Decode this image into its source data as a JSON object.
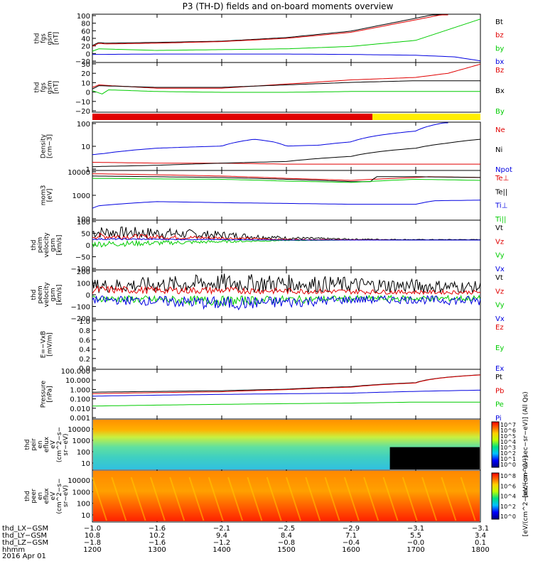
{
  "title": "P3 (TH-D) fields and on-board moments overview",
  "date": "2016 Apr 01",
  "colors": {
    "black": "#000000",
    "red": "#e00000",
    "green": "#00cc00",
    "blue": "#0000e0",
    "yellow": "#ffee00",
    "orange": "#ff8c00"
  },
  "chart_data": [
    {
      "type": "line",
      "ylabel": [
        "thd",
        "fgs",
        "gsm",
        "[nT]"
      ],
      "ylim": [
        -20,
        100
      ],
      "yticks": [
        "100",
        "80",
        "60",
        "40",
        "20",
        "0",
        "−20"
      ],
      "series": [
        {
          "name": "Bt",
          "color": "#000000",
          "x": [
            1200,
            1210,
            1220,
            1300,
            1400,
            1500,
            1600,
            1700,
            1745
          ],
          "values": [
            22,
            30,
            28,
            30,
            33,
            42,
            58,
            90,
            105
          ]
        },
        {
          "name": "bz",
          "color": "#e00000",
          "x": [
            1200,
            1210,
            1220,
            1300,
            1400,
            1500,
            1600,
            1700,
            1750
          ],
          "values": [
            20,
            28,
            26,
            28,
            32,
            40,
            55,
            86,
            102
          ]
        },
        {
          "name": "by",
          "color": "#00cc00",
          "x": [
            1200,
            1210,
            1300,
            1400,
            1500,
            1600,
            1700,
            1800
          ],
          "values": [
            8,
            14,
            10,
            12,
            14,
            20,
            35,
            88
          ]
        },
        {
          "name": "bx",
          "color": "#0000e0",
          "x": [
            1200,
            1300,
            1400,
            1500,
            1600,
            1700,
            1760,
            1800
          ],
          "values": [
            0,
            1,
            1,
            1,
            0,
            -2,
            -6,
            -16
          ]
        }
      ]
    },
    {
      "type": "line",
      "ylabel": [
        "thd",
        "fgs",
        "gsm",
        "[nT]"
      ],
      "ylim": [
        -30,
        30
      ],
      "yticks": [
        "30",
        "20",
        "10",
        "0",
        "−10",
        "−20"
      ],
      "series": [
        {
          "name": "Bz",
          "color": "#e00000",
          "x": [
            1200,
            1210,
            1230,
            1300,
            1400,
            1500,
            1600,
            1700,
            1750,
            1800
          ],
          "values": [
            0,
            3,
            2,
            -1,
            -1,
            4,
            9,
            12,
            17,
            28
          ]
        },
        {
          "name": "Bx",
          "color": "#000000",
          "x": [
            1200,
            1210,
            1300,
            1400,
            1500,
            1600,
            1700,
            1800
          ],
          "values": [
            -2,
            2,
            0,
            0,
            3,
            6,
            8,
            8
          ]
        },
        {
          "name": "By",
          "color": "#00cc00",
          "x": [
            1200,
            1215,
            1225,
            1300,
            1400,
            1500,
            1600,
            1700,
            1800
          ],
          "values": [
            -4,
            -8,
            -3,
            -5,
            -6,
            -6,
            -5,
            -5,
            -5
          ]
        }
      ]
    },
    {
      "type": "mode-bar",
      "segments": [
        {
          "x": [
            1200,
            1633
          ],
          "color": "#e00000"
        },
        {
          "x": [
            1633,
            1800
          ],
          "color": "#ffee00"
        }
      ]
    },
    {
      "type": "line",
      "scale": "log",
      "ylabel": [
        "Density",
        "[cm−3]"
      ],
      "ylim": [
        0.3,
        200
      ],
      "yticks": [
        "100",
        "10",
        "1"
      ],
      "series": [
        {
          "name": "Ne",
          "color": "#e00000",
          "x": [
            1200,
            1300,
            1400,
            1500,
            1600,
            1700,
            1800
          ],
          "values": [
            0.9,
            0.8,
            0.8,
            0.7,
            0.7,
            0.7,
            0.7
          ]
        },
        {
          "name": "Ni",
          "color": "#000000",
          "x": [
            1200,
            1300,
            1400,
            1500,
            1600,
            1700,
            1750,
            1800
          ],
          "values": [
            0.5,
            0.6,
            0.8,
            1.0,
            2.0,
            6.0,
            12,
            20
          ]
        },
        {
          "name": "Npot",
          "color": "#0000e0",
          "x": [
            1200,
            1220,
            1300,
            1400,
            1450,
            1480,
            1500,
            1550,
            1600,
            1700,
            1750
          ],
          "values": [
            2.5,
            3,
            6,
            8,
            20,
            14,
            8,
            9,
            14,
            60,
            200
          ]
        }
      ]
    },
    {
      "type": "line",
      "scale": "log",
      "ylabel": [
        "mom3",
        "[eV]"
      ],
      "ylim": [
        25,
        12000
      ],
      "yticks": [
        "10000",
        "1000",
        "100"
      ],
      "series": [
        {
          "name": "Te⊥",
          "color": "#e00000",
          "x": [
            1200,
            1300,
            1400,
            1500,
            1600,
            1700,
            1720,
            1800
          ],
          "values": [
            8000,
            7000,
            6000,
            4500,
            3500,
            5000,
            5500,
            5000
          ]
        },
        {
          "name": "Te||",
          "color": "#000000",
          "x": [
            1200,
            1300,
            1400,
            1500,
            1600,
            1630,
            1640,
            1700,
            1800
          ],
          "values": [
            6000,
            5500,
            5000,
            4000,
            3000,
            3000,
            5500,
            5500,
            5000
          ]
        },
        {
          "name": "Ti⊥",
          "color": "#0000e0",
          "x": [
            1200,
            1210,
            1300,
            1400,
            1500,
            1600,
            1700,
            1730,
            1800
          ],
          "values": [
            110,
            150,
            250,
            220,
            200,
            180,
            180,
            280,
            300
          ]
        },
        {
          "name": "Ti||",
          "color": "#00cc00",
          "x": [
            1200,
            1300,
            1400,
            1500,
            1600,
            1700,
            1800
          ],
          "values": [
            4500,
            4200,
            4000,
            3200,
            2700,
            4000,
            3500
          ]
        }
      ]
    },
    {
      "type": "line",
      "ylabel": [
        "thd",
        "peim",
        "velocity",
        "gsm",
        "[km/s]"
      ],
      "ylim": [
        -150,
        100
      ],
      "yticks": [
        "100",
        "50",
        "0",
        "−50",
        "−100"
      ],
      "series": [
        {
          "name": "Vt",
          "color": "#000000",
          "x": [
            1200,
            1300,
            1400,
            1500,
            1600,
            1700,
            1800
          ],
          "values": [
            40,
            35,
            25,
            10,
            4,
            2,
            2
          ]
        },
        {
          "name": "Vz",
          "color": "#e00000",
          "x": [
            1200,
            1300,
            1400,
            1500,
            1600,
            1700,
            1800
          ],
          "values": [
            20,
            15,
            10,
            3,
            1,
            0,
            0
          ]
        },
        {
          "name": "Vy",
          "color": "#00cc00",
          "x": [
            1200,
            1300,
            1400,
            1500,
            1600,
            1700,
            1800
          ],
          "values": [
            -20,
            -15,
            -8,
            -2,
            0,
            0,
            0
          ]
        },
        {
          "name": "Vx",
          "color": "#0000e0",
          "x": [
            1200,
            1300,
            1400,
            1500,
            1600,
            1700,
            1800
          ],
          "values": [
            5,
            4,
            2,
            0,
            0,
            0,
            0
          ]
        }
      ]
    },
    {
      "type": "line",
      "ylabel": [
        "thd",
        "peem",
        "velocity",
        "gsm",
        "[km/s]"
      ],
      "ylim": [
        -200,
        200
      ],
      "yticks": [
        "200",
        "100",
        "0",
        "−100",
        "−200"
      ],
      "series": [
        {
          "name": "Vt",
          "color": "#000000",
          "x": [
            1200,
            1300,
            1400,
            1500,
            1600,
            1700,
            1800
          ],
          "values": [
            70,
            80,
            95,
            90,
            80,
            70,
            60
          ]
        },
        {
          "name": "Vz",
          "color": "#e00000",
          "x": [
            1200,
            1300,
            1400,
            1500,
            1600,
            1700,
            1800
          ],
          "values": [
            40,
            35,
            35,
            30,
            25,
            20,
            20
          ]
        },
        {
          "name": "Vy",
          "color": "#00cc00",
          "x": [
            1200,
            1300,
            1400,
            1500,
            1600,
            1700,
            1800
          ],
          "values": [
            -30,
            -40,
            -50,
            -40,
            -30,
            -30,
            -30
          ]
        },
        {
          "name": "Vx",
          "color": "#0000e0",
          "x": [
            1200,
            1300,
            1400,
            1500,
            1600,
            1700,
            1800
          ],
          "values": [
            -40,
            -50,
            -70,
            -60,
            -40,
            -40,
            -50
          ]
        }
      ]
    },
    {
      "type": "line",
      "ylabel": [
        "E=−VxB",
        "[mV/m]"
      ],
      "ylim": [
        0,
        1.0
      ],
      "yticks": [
        "1.0",
        "0.8",
        "0.6",
        "0.4",
        "0.2",
        "0.0"
      ],
      "series": [
        {
          "name": "Ez",
          "color": "#e00000",
          "x": [],
          "values": []
        },
        {
          "name": "Ey",
          "color": "#00cc00",
          "x": [],
          "values": []
        },
        {
          "name": "Ex",
          "color": "#0000e0",
          "x": [],
          "values": []
        }
      ]
    },
    {
      "type": "line",
      "scale": "log",
      "ylabel": [
        "Pressure",
        "[nPa]"
      ],
      "ylim": [
        0.001,
        100
      ],
      "yticks": [
        "100.000",
        "10.000",
        "1.000",
        "0.100",
        "0.010",
        "0.001"
      ],
      "series": [
        {
          "name": "Pt",
          "color": "#000000",
          "x": [
            1200,
            1300,
            1400,
            1500,
            1600,
            1700,
            1800
          ],
          "values": [
            0.5,
            0.6,
            0.7,
            1.0,
            1.8,
            4.5,
            28
          ]
        },
        {
          "name": "Pb",
          "color": "#e00000",
          "x": [
            1200,
            1300,
            1400,
            1500,
            1600,
            1700,
            1800
          ],
          "values": [
            0.35,
            0.45,
            0.55,
            0.9,
            1.6,
            4.2,
            27
          ]
        },
        {
          "name": "Pe",
          "color": "#00cc00",
          "x": [
            1200,
            1300,
            1400,
            1500,
            1600,
            1700,
            1800
          ],
          "values": [
            0.02,
            0.025,
            0.03,
            0.035,
            0.04,
            0.05,
            0.05
          ]
        },
        {
          "name": "Pi",
          "color": "#0000e0",
          "x": [
            1200,
            1300,
            1400,
            1500,
            1600,
            1700,
            1800
          ],
          "values": [
            0.2,
            0.25,
            0.3,
            0.35,
            0.4,
            0.6,
            0.8
          ]
        }
      ]
    },
    {
      "type": "heatmap",
      "ylabel": [
        "thd",
        "peir",
        "en",
        "eflux",
        "eV",
        "(cm^2−s−",
        "sr−eV)"
      ],
      "yticks": [
        "10000",
        "1000",
        "100",
        "10"
      ],
      "colorbar": {
        "label": "[eV/(cm^2−sec−sr−eV)] (All Qs)",
        "ticks": [
          "10^7",
          "10^6",
          "10^5",
          "10^4",
          "10^3",
          "10^2",
          "10^1",
          "10^0"
        ]
      }
    },
    {
      "type": "heatmap",
      "ylabel": [
        "thd",
        "peer",
        "en",
        "eflux",
        "eV",
        "(cm^2−s−",
        "sr−eV)"
      ],
      "yticks": [
        "10000",
        "1000",
        "100",
        "10"
      ],
      "colorbar": {
        "label": "[eV/(cm^2−sec−sr−eV)]",
        "ticks": [
          "10^8",
          "10^6",
          "10^4",
          "10^2",
          "10^0"
        ]
      }
    }
  ],
  "xaxis": {
    "times": [
      1200,
      1800
    ],
    "ticks_x": [
      1200,
      1300,
      1400,
      1500,
      1600,
      1700,
      1800
    ],
    "rows": [
      {
        "label": "thd_LX−GSM",
        "values": [
          "−1.0",
          "−1.6",
          "−2.1",
          "−2.5",
          "−2.9",
          "−3.1",
          "−3.1"
        ]
      },
      {
        "label": "thd_LY−GSM",
        "values": [
          "10.8",
          "10.2",
          "9.4",
          "8.4",
          "7.1",
          "5.5",
          "3.4"
        ]
      },
      {
        "label": "thd_LZ−GSM",
        "values": [
          "−1.8",
          "−1.6",
          "−1.2",
          "−0.8",
          "−0.4",
          "−0.0",
          "0.1"
        ]
      },
      {
        "label": "hhmm",
        "values": [
          "1200",
          "1300",
          "1400",
          "1500",
          "1600",
          "1700",
          "1800"
        ]
      }
    ]
  }
}
